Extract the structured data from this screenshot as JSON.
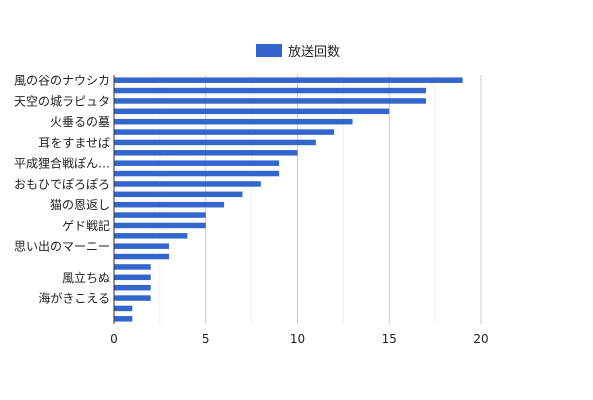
{
  "chart_data": {
    "type": "bar",
    "orientation": "horizontal",
    "series": [
      {
        "name": "放送回数",
        "color": "#3366cc",
        "values": [
          19,
          17,
          17,
          15,
          13,
          12,
          11,
          10,
          9,
          9,
          8,
          7,
          6,
          5,
          5,
          4,
          3,
          3,
          2,
          2,
          2,
          2,
          1,
          1
        ]
      }
    ],
    "category_labels": [
      "風の谷のナウシカ",
      "",
      "天空の城ラピュタ",
      "",
      "火垂るの墓",
      "",
      "耳をすませば",
      "",
      "平成狸合戦ぽん…",
      "",
      "おもひでぽろぽろ",
      "",
      "猫の恩返し",
      "",
      "ゲド戦記",
      "",
      "思い出のマーニー",
      "",
      "",
      "風立ちぬ",
      "",
      "海がきこえる",
      "",
      ""
    ],
    "xlim": [
      0,
      20
    ],
    "x_ticks": [
      0,
      5,
      10,
      15,
      20
    ],
    "grid": "vertical",
    "legend_position": "top",
    "title": "",
    "xlabel": "",
    "ylabel": ""
  }
}
